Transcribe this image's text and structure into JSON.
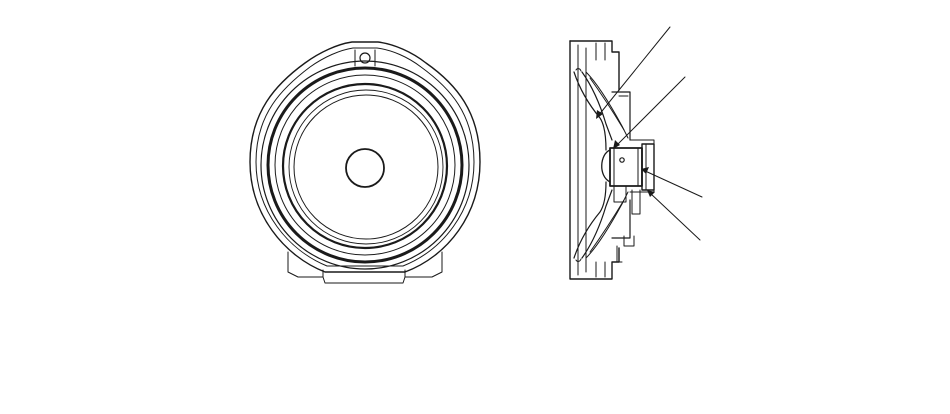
{
  "figure": {
    "subject": "speaker",
    "views": [
      "front-view",
      "side-section-view"
    ],
    "leader_lines": 4,
    "line_color": "#1a1a1a",
    "background": "#ffffff"
  }
}
